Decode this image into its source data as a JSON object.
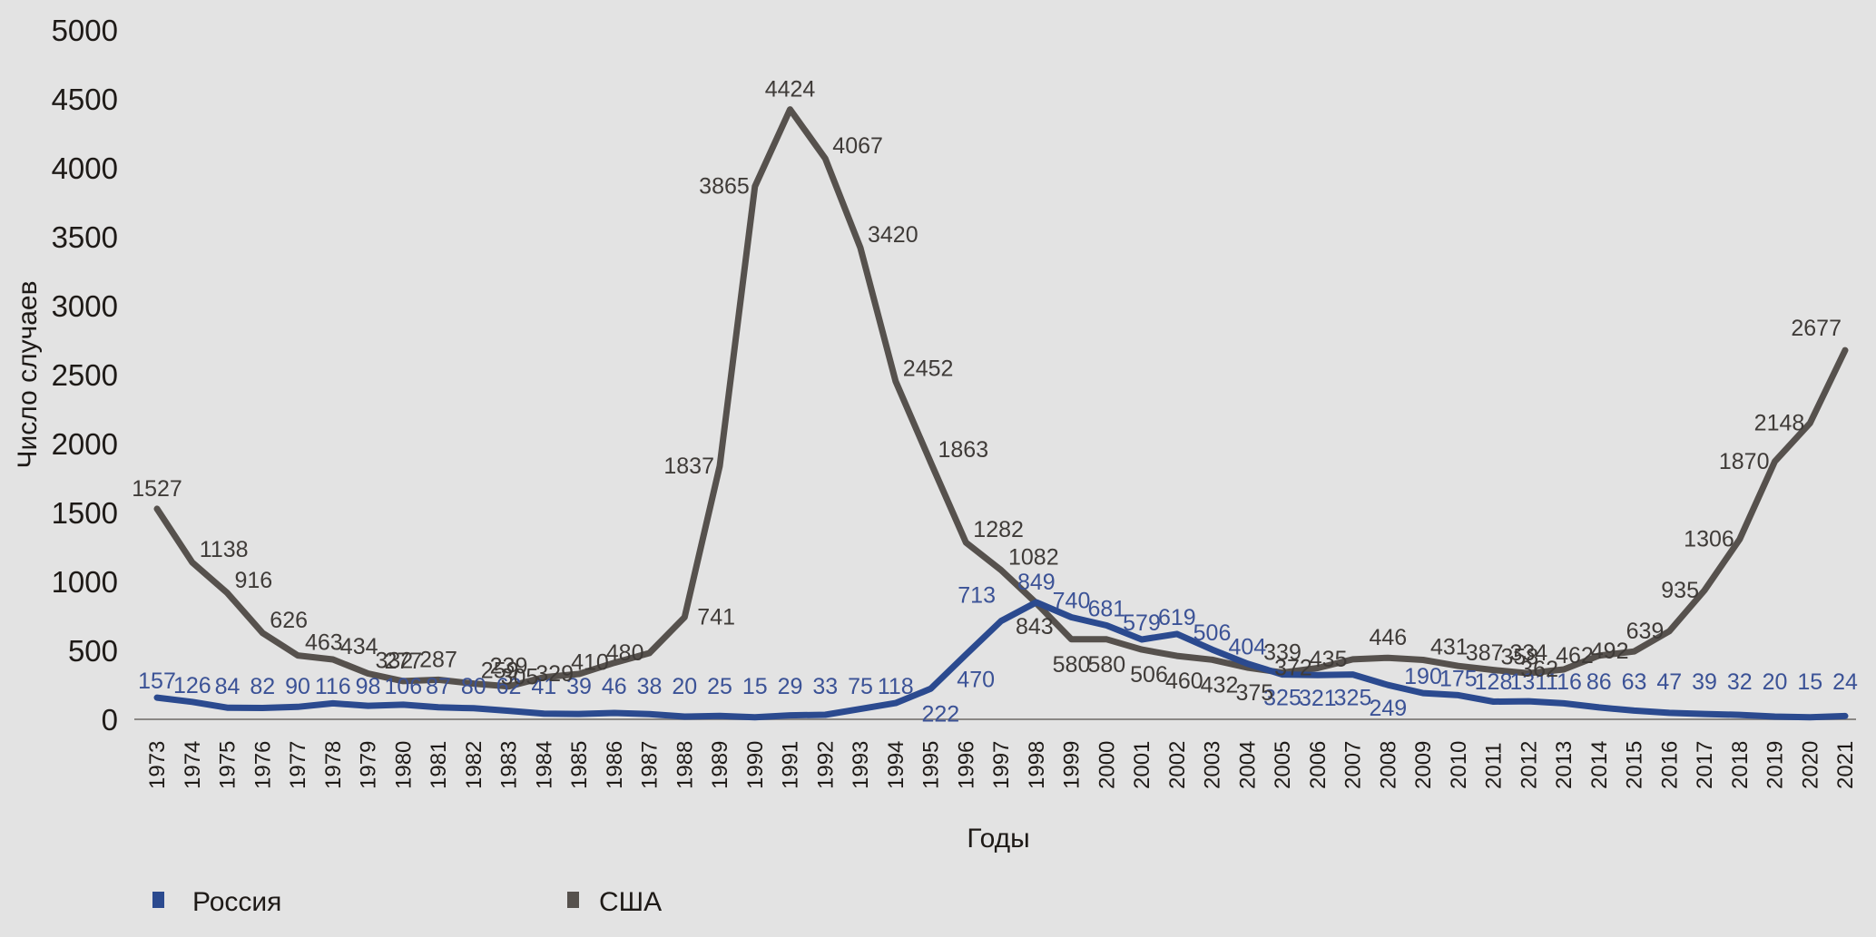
{
  "chart_data": {
    "type": "line",
    "title": "",
    "xlabel": "Годы",
    "ylabel": "Число случаев",
    "ylim": [
      0,
      5000
    ],
    "yticks": [
      0,
      500,
      1000,
      1500,
      2000,
      2500,
      3000,
      3500,
      4000,
      4500,
      5000
    ],
    "grid": false,
    "legend_position": "bottom-left",
    "x": [
      1973,
      1974,
      1975,
      1976,
      1977,
      1978,
      1979,
      1980,
      1981,
      1982,
      1983,
      1984,
      1985,
      1986,
      1987,
      1988,
      1989,
      1990,
      1991,
      1992,
      1993,
      1994,
      1995,
      1996,
      1997,
      1998,
      1999,
      2000,
      2001,
      2002,
      2003,
      2004,
      2005,
      2006,
      2007,
      2008,
      2009,
      2010,
      2011,
      2012,
      2013,
      2014,
      2015,
      2016,
      2017,
      2018,
      2019,
      2020,
      2021
    ],
    "series": [
      {
        "name": "Россия",
        "color": "#2b4a8f",
        "label_color": "#3b5296",
        "values": [
          157,
          126,
          84,
          82,
          90,
          116,
          98,
          106,
          87,
          80,
          62,
          41,
          39,
          46,
          38,
          20,
          25,
          15,
          29,
          33,
          75,
          118,
          222,
          470,
          713,
          849,
          740,
          681,
          579,
          619,
          506,
          404,
          325,
          321,
          325,
          249,
          190,
          175,
          128,
          131,
          116,
          86,
          63,
          47,
          39,
          32,
          20,
          15,
          24
        ]
      },
      {
        "name": "США",
        "color": "#56514d",
        "label_color": "#3f3b38",
        "values": [
          1527,
          1138,
          916,
          626,
          463,
          434,
          332,
          277,
          287,
          259,
          239,
          305,
          329,
          410,
          480,
          741,
          1837,
          3865,
          4424,
          4067,
          3420,
          2452,
          1863,
          1282,
          1082,
          843,
          580,
          580,
          506,
          460,
          432,
          375,
          339,
          372,
          435,
          446,
          431,
          387,
          358,
          334,
          362,
          462,
          492,
          639,
          935,
          1306,
          1870,
          2148,
          2677
        ]
      }
    ]
  }
}
